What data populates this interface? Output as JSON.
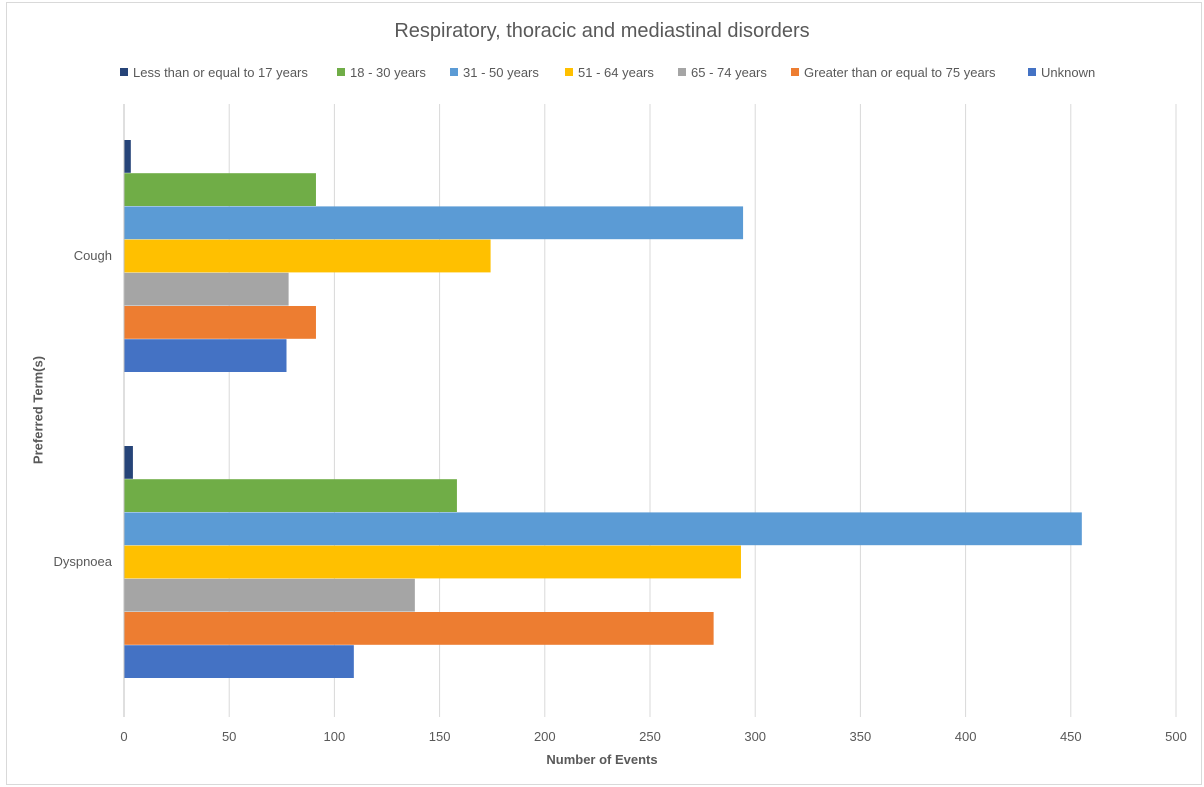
{
  "chart_data": {
    "type": "bar",
    "orientation": "horizontal",
    "title": "Respiratory, thoracic and mediastinal disorders",
    "xlabel": "Number of Events",
    "ylabel": "Preferred Term(s)",
    "categories": [
      "Cough",
      "Dyspnoea"
    ],
    "xlim": [
      0,
      500
    ],
    "xticks": [
      0,
      50,
      100,
      150,
      200,
      250,
      300,
      350,
      400,
      450,
      500
    ],
    "grid": "vertical",
    "legend_position": "top",
    "series": [
      {
        "name": "Less than or equal to 17 years",
        "color": "#264478",
        "values": [
          3,
          4
        ]
      },
      {
        "name": "18 - 30 years",
        "color": "#70AD47",
        "values": [
          91,
          158
        ]
      },
      {
        "name": "31 - 50 years",
        "color": "#5B9BD5",
        "values": [
          294,
          455
        ]
      },
      {
        "name": "51 - 64 years",
        "color": "#FFC000",
        "values": [
          174,
          293
        ]
      },
      {
        "name": "65 - 74 years",
        "color": "#A5A5A5",
        "values": [
          78,
          138
        ]
      },
      {
        "name": "Greater than or equal to 75 years",
        "color": "#ED7D31",
        "values": [
          91,
          280
        ]
      },
      {
        "name": "Unknown",
        "color": "#4472C4",
        "values": [
          77,
          109
        ]
      }
    ]
  }
}
